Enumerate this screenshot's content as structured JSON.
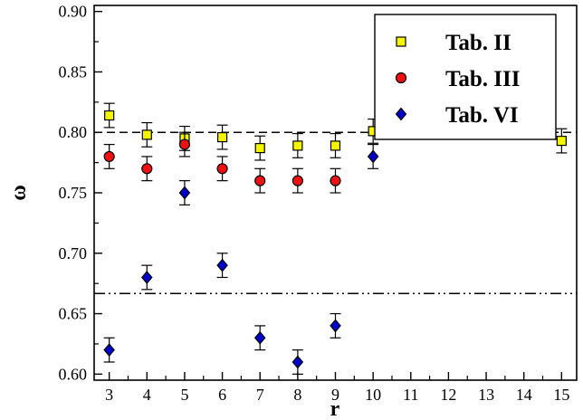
{
  "chart_data": {
    "type": "scatter",
    "xlabel": "r",
    "ylabel": "ω",
    "xlim": [
      2.6,
      15.4
    ],
    "ylim": [
      0.595,
      0.905
    ],
    "x_ticks": [
      3,
      4,
      5,
      6,
      7,
      8,
      9,
      10,
      11,
      12,
      13,
      14,
      15
    ],
    "y_ticks": [
      0.6,
      0.65,
      0.7,
      0.75,
      0.8,
      0.85,
      0.9
    ],
    "y_tick_labels": [
      "0.60",
      "0.65",
      "0.70",
      "0.75",
      "0.80",
      "0.85",
      "0.90"
    ],
    "grid": false,
    "legend_position": "top-right",
    "reference_lines": [
      {
        "y": 0.8,
        "style": "dashed"
      },
      {
        "y": 0.6667,
        "style": "dash-dot-dot"
      }
    ],
    "series": [
      {
        "name": "Tab. II",
        "marker": "square",
        "color": "#f5f500",
        "x": [
          3,
          4,
          5,
          6,
          7,
          8,
          9,
          10,
          15
        ],
        "y": [
          0.814,
          0.798,
          0.795,
          0.796,
          0.787,
          0.789,
          0.789,
          0.801,
          0.793
        ],
        "yerr": [
          0.01,
          0.01,
          0.01,
          0.01,
          0.01,
          0.01,
          0.01,
          0.01,
          0.01
        ]
      },
      {
        "name": "Tab. III",
        "marker": "circle",
        "color": "#ee1111",
        "x": [
          3,
          4,
          5,
          6,
          7,
          8,
          9
        ],
        "y": [
          0.78,
          0.77,
          0.79,
          0.77,
          0.76,
          0.76,
          0.76
        ],
        "yerr": [
          0.01,
          0.01,
          0.01,
          0.01,
          0.01,
          0.01,
          0.01
        ]
      },
      {
        "name": "Tab. VI",
        "marker": "diamond",
        "color": "#0000cc",
        "x": [
          3,
          4,
          5,
          6,
          7,
          8,
          9,
          10
        ],
        "y": [
          0.62,
          0.68,
          0.75,
          0.69,
          0.63,
          0.61,
          0.64,
          0.78
        ],
        "yerr": [
          0.01,
          0.01,
          0.01,
          0.01,
          0.01,
          0.01,
          0.01,
          0.01
        ]
      }
    ]
  }
}
